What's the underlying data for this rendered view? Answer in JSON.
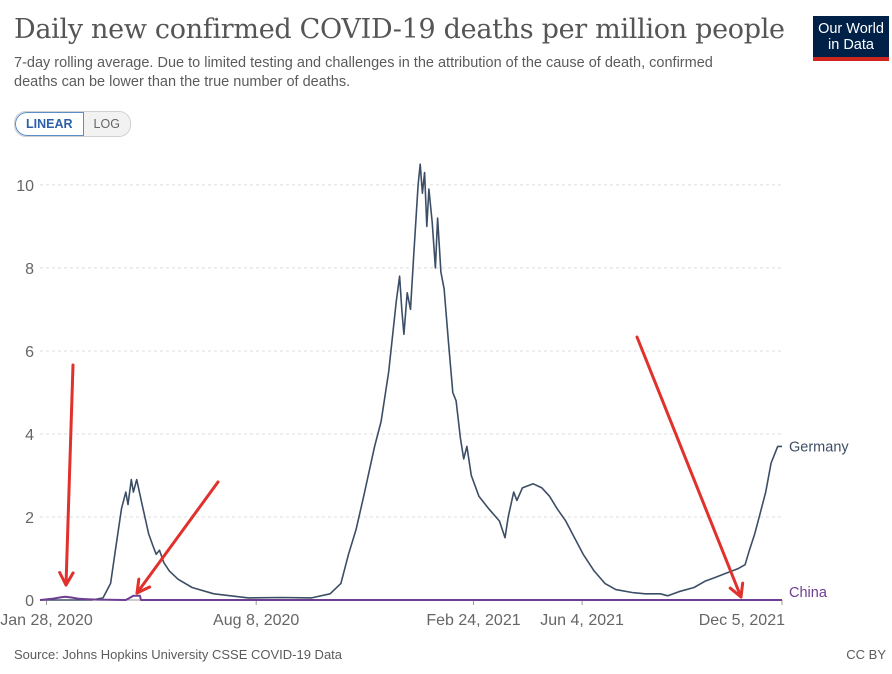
{
  "header": {
    "title": "Daily new confirmed COVID-19 deaths per million people",
    "subtitle": "7-day rolling average. Due to limited testing and challenges in the attribution of the cause of death, confirmed deaths can be lower than the true number of deaths.",
    "logo_line1": "Our World",
    "logo_line2": "in Data",
    "logo_bg": "#002147",
    "logo_accent": "#ce261e"
  },
  "scale_toggle": {
    "linear_label": "LINEAR",
    "log_label": "LOG",
    "selected": "LINEAR"
  },
  "footer": {
    "source": "Source: Johns Hopkins University CSSE COVID-19 Data",
    "license": "CC BY"
  },
  "annotations": {
    "arrow_color": "#e0312c",
    "arrow_count": 3
  },
  "chart_data": {
    "type": "line",
    "title": "Daily new confirmed COVID-19 deaths per million people",
    "xlabel": "",
    "ylabel": "",
    "xlim": [
      "2020-01-22",
      "2021-12-05"
    ],
    "ylim": [
      0,
      10.6
    ],
    "y_ticks": [
      0,
      2,
      4,
      6,
      8,
      10
    ],
    "x_ticks": [
      "Jan 28, 2020",
      "Aug 8, 2020",
      "Feb 24, 2021",
      "Jun 4, 2021",
      "Dec 5, 2021"
    ],
    "grid": "horizontal dashed",
    "legend": "inline labels at line ends",
    "series": [
      {
        "name": "Germany",
        "color": "#3c4e66",
        "points": [
          [
            "2020-01-22",
            0
          ],
          [
            "2020-03-10",
            0
          ],
          [
            "2020-03-20",
            0.05
          ],
          [
            "2020-03-27",
            0.4
          ],
          [
            "2020-04-01",
            1.3
          ],
          [
            "2020-04-06",
            2.2
          ],
          [
            "2020-04-10",
            2.6
          ],
          [
            "2020-04-12",
            2.3
          ],
          [
            "2020-04-15",
            2.9
          ],
          [
            "2020-04-17",
            2.6
          ],
          [
            "2020-04-20",
            2.9
          ],
          [
            "2020-04-25",
            2.3
          ],
          [
            "2020-05-01",
            1.6
          ],
          [
            "2020-05-05",
            1.3
          ],
          [
            "2020-05-08",
            1.1
          ],
          [
            "2020-05-11",
            1.2
          ],
          [
            "2020-05-15",
            0.9
          ],
          [
            "2020-05-20",
            0.7
          ],
          [
            "2020-05-28",
            0.5
          ],
          [
            "2020-06-10",
            0.3
          ],
          [
            "2020-06-30",
            0.15
          ],
          [
            "2020-08-01",
            0.05
          ],
          [
            "2020-09-01",
            0.06
          ],
          [
            "2020-09-28",
            0.05
          ],
          [
            "2020-10-15",
            0.15
          ],
          [
            "2020-10-25",
            0.4
          ],
          [
            "2020-11-01",
            1.1
          ],
          [
            "2020-11-08",
            1.7
          ],
          [
            "2020-11-15",
            2.5
          ],
          [
            "2020-11-25",
            3.7
          ],
          [
            "2020-12-01",
            4.3
          ],
          [
            "2020-12-08",
            5.5
          ],
          [
            "2020-12-15",
            7.2
          ],
          [
            "2020-12-18",
            7.8
          ],
          [
            "2020-12-20",
            7.0
          ],
          [
            "2020-12-22",
            6.4
          ],
          [
            "2020-12-25",
            7.4
          ],
          [
            "2020-12-28",
            7.0
          ],
          [
            "2020-12-31",
            8.3
          ],
          [
            "2021-01-04",
            10.0
          ],
          [
            "2021-01-06",
            10.5
          ],
          [
            "2021-01-08",
            9.8
          ],
          [
            "2021-01-10",
            10.3
          ],
          [
            "2021-01-12",
            9.0
          ],
          [
            "2021-01-14",
            9.9
          ],
          [
            "2021-01-17",
            9.1
          ],
          [
            "2021-01-20",
            8.0
          ],
          [
            "2021-01-22",
            9.2
          ],
          [
            "2021-01-25",
            7.9
          ],
          [
            "2021-01-28",
            7.5
          ],
          [
            "2021-02-01",
            6.2
          ],
          [
            "2021-02-05",
            5.0
          ],
          [
            "2021-02-08",
            4.8
          ],
          [
            "2021-02-12",
            3.9
          ],
          [
            "2021-02-15",
            3.4
          ],
          [
            "2021-02-18",
            3.7
          ],
          [
            "2021-02-22",
            3.0
          ],
          [
            "2021-03-01",
            2.5
          ],
          [
            "2021-03-10",
            2.2
          ],
          [
            "2021-03-20",
            1.9
          ],
          [
            "2021-03-25",
            1.5
          ],
          [
            "2021-03-28",
            2.0
          ],
          [
            "2021-04-02",
            2.6
          ],
          [
            "2021-04-05",
            2.4
          ],
          [
            "2021-04-10",
            2.7
          ],
          [
            "2021-04-20",
            2.8
          ],
          [
            "2021-04-28",
            2.7
          ],
          [
            "2021-05-05",
            2.5
          ],
          [
            "2021-05-12",
            2.2
          ],
          [
            "2021-05-20",
            1.9
          ],
          [
            "2021-05-28",
            1.5
          ],
          [
            "2021-06-05",
            1.1
          ],
          [
            "2021-06-15",
            0.7
          ],
          [
            "2021-06-25",
            0.4
          ],
          [
            "2021-07-05",
            0.25
          ],
          [
            "2021-07-20",
            0.18
          ],
          [
            "2021-08-01",
            0.15
          ],
          [
            "2021-08-15",
            0.15
          ],
          [
            "2021-08-22",
            0.1
          ],
          [
            "2021-09-01",
            0.2
          ],
          [
            "2021-09-15",
            0.3
          ],
          [
            "2021-09-25",
            0.45
          ],
          [
            "2021-10-05",
            0.55
          ],
          [
            "2021-10-15",
            0.65
          ],
          [
            "2021-10-25",
            0.75
          ],
          [
            "2021-11-01",
            0.85
          ],
          [
            "2021-11-05",
            1.2
          ],
          [
            "2021-11-10",
            1.6
          ],
          [
            "2021-11-15",
            2.1
          ],
          [
            "2021-11-20",
            2.6
          ],
          [
            "2021-11-25",
            3.3
          ],
          [
            "2021-12-01",
            3.7
          ],
          [
            "2021-12-05",
            3.7
          ]
        ]
      },
      {
        "name": "China",
        "color": "#6d3e91",
        "points": [
          [
            "2020-01-22",
            0
          ],
          [
            "2020-01-26",
            0.01
          ],
          [
            "2020-02-02",
            0.03
          ],
          [
            "2020-02-09",
            0.06
          ],
          [
            "2020-02-14",
            0.08
          ],
          [
            "2020-02-20",
            0.06
          ],
          [
            "2020-02-27",
            0.03
          ],
          [
            "2020-03-05",
            0.02
          ],
          [
            "2020-03-15",
            0.01
          ],
          [
            "2020-04-10",
            0
          ],
          [
            "2020-04-17",
            0.1
          ],
          [
            "2020-04-23",
            0.1
          ],
          [
            "2020-04-24",
            0
          ],
          [
            "2021-12-05",
            0
          ]
        ]
      }
    ]
  }
}
